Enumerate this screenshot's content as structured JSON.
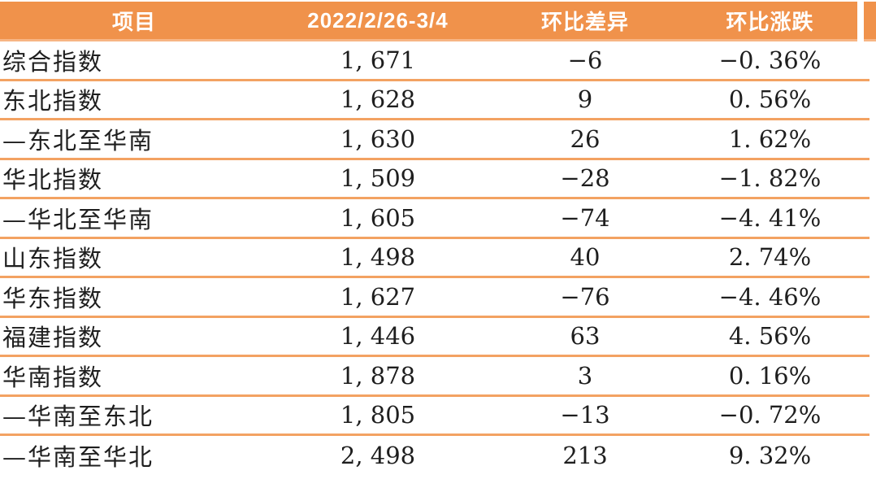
{
  "chart_data": {
    "type": "table",
    "title": "",
    "accent_color": "#F0924B",
    "divider_color": "#F3A262",
    "header_text_color": "#FFFFFF",
    "body_text_color": "#1E1E1E",
    "columns": [
      "项目",
      "2022/2/26-3/4",
      "环比差异",
      "环比涨跌"
    ],
    "rows": [
      {
        "label": "综合指数",
        "index": 1671,
        "diff": -6,
        "pct": -0.36,
        "index_display": "1, 671",
        "diff_display": "−6",
        "pct_display": "−0. 36%"
      },
      {
        "label": "东北指数",
        "index": 1628,
        "diff": 9,
        "pct": 0.56,
        "index_display": "1, 628",
        "diff_display": "9",
        "pct_display": "0. 56%"
      },
      {
        "label": "—东北至华南",
        "index": 1630,
        "diff": 26,
        "pct": 1.62,
        "index_display": "1, 630",
        "diff_display": "26",
        "pct_display": "1. 62%"
      },
      {
        "label": "华北指数",
        "index": 1509,
        "diff": -28,
        "pct": -1.82,
        "index_display": "1, 509",
        "diff_display": "−28",
        "pct_display": "−1. 82%"
      },
      {
        "label": "—华北至华南",
        "index": 1605,
        "diff": -74,
        "pct": -4.41,
        "index_display": "1, 605",
        "diff_display": "−74",
        "pct_display": "−4. 41%"
      },
      {
        "label": "山东指数",
        "index": 1498,
        "diff": 40,
        "pct": 2.74,
        "index_display": "1, 498",
        "diff_display": "40",
        "pct_display": "2. 74%"
      },
      {
        "label": "华东指数",
        "index": 1627,
        "diff": -76,
        "pct": -4.46,
        "index_display": "1, 627",
        "diff_display": "−76",
        "pct_display": "−4. 46%"
      },
      {
        "label": "福建指数",
        "index": 1446,
        "diff": 63,
        "pct": 4.56,
        "index_display": "1, 446",
        "diff_display": "63",
        "pct_display": "4. 56%"
      },
      {
        "label": "华南指数",
        "index": 1878,
        "diff": 3,
        "pct": 0.16,
        "index_display": "1, 878",
        "diff_display": "3",
        "pct_display": "0. 16%"
      },
      {
        "label": "—华南至东北",
        "index": 1805,
        "diff": -13,
        "pct": -0.72,
        "index_display": "1, 805",
        "diff_display": "−13",
        "pct_display": "−0. 72%"
      },
      {
        "label": "—华南至华北",
        "index": 2498,
        "diff": 213,
        "pct": 9.32,
        "index_display": "2, 498",
        "diff_display": "213",
        "pct_display": "9. 32%"
      }
    ]
  }
}
